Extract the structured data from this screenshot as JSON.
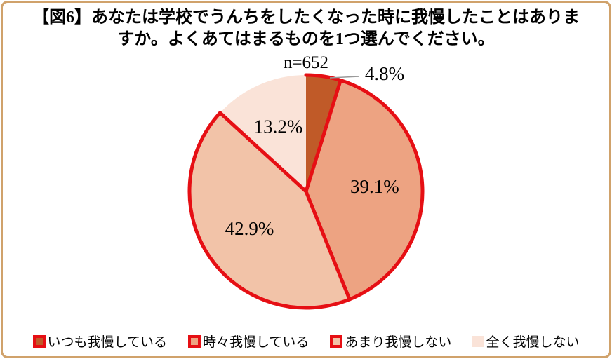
{
  "frame": {
    "border_color": "#d0a26b",
    "background": "#ffffff"
  },
  "title": {
    "line1": "【図6】あなたは学校でうんちをしたくなった時に我慢したことはありま",
    "line2": "すか。よくあてはまるものを1つ選んでください。"
  },
  "sample_size_label": "n=652",
  "chart_data": {
    "type": "pie",
    "title": "【図6】あなたは学校でうんちをしたくなった時に我慢したことはありますか。よくあてはまるものを1つ選んでください。",
    "n_label": "n=652",
    "n": 652,
    "start_angle_deg": 0,
    "direction": "clockwise",
    "legend_position": "bottom",
    "border_red": "#e60f14",
    "leader_line_color": "#999999",
    "slices": [
      {
        "label": "いつも我慢している",
        "value_pct": 4.8,
        "display": "4.8%",
        "color": "#c05a28",
        "border_color": "#e60f14",
        "label_outside": true
      },
      {
        "label": "時々我慢している",
        "value_pct": 39.1,
        "display": "39.1%",
        "color": "#eda382",
        "border_color": "#e60f14",
        "label_outside": false
      },
      {
        "label": "あまり我慢しない",
        "value_pct": 42.9,
        "display": "42.9%",
        "color": "#f2c3a8",
        "border_color": "#e60f14",
        "label_outside": false
      },
      {
        "label": "全く我慢しない",
        "value_pct": 13.2,
        "display": "13.2%",
        "color": "#fae3d8",
        "border_color": null,
        "label_outside": false
      }
    ]
  },
  "legend": {
    "items": [
      {
        "label": "いつも我慢している"
      },
      {
        "label": "時々我慢している"
      },
      {
        "label": "あまり我慢しない"
      },
      {
        "label": "全く我慢しない"
      }
    ]
  }
}
